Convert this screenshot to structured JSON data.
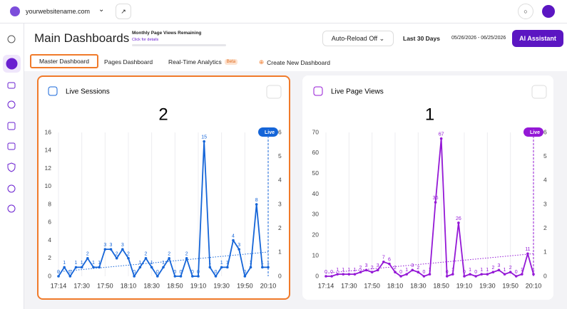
{
  "ui": {
    "site": "yourwebsitename.com",
    "heading": "Main Dashboards",
    "quota_title": "Monthly Page Views Remaining",
    "quota_link": "Click for details",
    "auto_reload": "Auto-Reload Off",
    "range": "Last 30 Days",
    "dates": "05/26/2026 - 06/25/2026",
    "ai": "AI Assistant",
    "tabs": [
      "Master Dashboard",
      "Pages Dashboard",
      "Real-Time Analytics",
      "Create New Dashboard"
    ],
    "beta": "Beta"
  },
  "chart_data": [
    {
      "type": "line",
      "title": "Live Sessions",
      "current": 2,
      "live_label": "Live",
      "color": "#1565d8",
      "categories": [
        "17:14",
        null,
        null,
        null,
        "17:30",
        null,
        null,
        null,
        "17:50",
        null,
        null,
        null,
        "18:10",
        null,
        null,
        null,
        "18:30",
        null,
        null,
        null,
        "18:50",
        null,
        null,
        null,
        "19:10",
        null,
        null,
        null,
        "19:30",
        null,
        null,
        null,
        "19:50",
        null,
        null,
        null,
        "20:10"
      ],
      "series": [
        {
          "name": "Live Sessions",
          "color": "#1565d8",
          "values": [
            0,
            1,
            0,
            1,
            1,
            2,
            1,
            1,
            3,
            3,
            2,
            3,
            2,
            0,
            1,
            2,
            1,
            0,
            1,
            2,
            0,
            0,
            2,
            0,
            0,
            15,
            1,
            0,
            1,
            1,
            4,
            3,
            0,
            1,
            8,
            1,
            1
          ]
        }
      ],
      "trend": [
        0.5,
        2.7
      ],
      "ylim": [
        0,
        16
      ],
      "yticks": [
        0,
        2,
        4,
        6,
        8,
        10,
        12,
        14,
        16
      ],
      "y2lim": [
        0,
        6
      ],
      "y2ticks": [
        0,
        1,
        2,
        3,
        4,
        5,
        6
      ]
    },
    {
      "type": "line",
      "title": "Live Page Views",
      "current": 1,
      "live_label": "Live",
      "color": "#9418d6",
      "categories": [
        "17:14",
        null,
        null,
        null,
        "17:30",
        null,
        null,
        null,
        "17:50",
        null,
        null,
        null,
        "18:10",
        null,
        null,
        null,
        "18:30",
        null,
        null,
        null,
        "18:50",
        null,
        null,
        null,
        "19:10",
        null,
        null,
        null,
        "19:30",
        null,
        null,
        null,
        "19:50",
        null,
        null,
        null,
        "20:10"
      ],
      "series": [
        {
          "name": "Live Page Views",
          "color": "#9418d6",
          "values": [
            0,
            0,
            1,
            1,
            1,
            1,
            2,
            3,
            2,
            3,
            7,
            6,
            2,
            0,
            1,
            3,
            2,
            0,
            1,
            36,
            67,
            0,
            1,
            26,
            0,
            1,
            0,
            1,
            1,
            2,
            3,
            1,
            2,
            0,
            1,
            11,
            1
          ]
        }
      ],
      "trend": [
        1.5,
        11
      ],
      "ylim": [
        0,
        70
      ],
      "yticks": [
        0,
        10,
        20,
        30,
        40,
        50,
        60,
        70
      ],
      "y2lim": [
        0,
        6
      ],
      "y2ticks": [
        0,
        1,
        2,
        3,
        4,
        5,
        6
      ]
    }
  ]
}
